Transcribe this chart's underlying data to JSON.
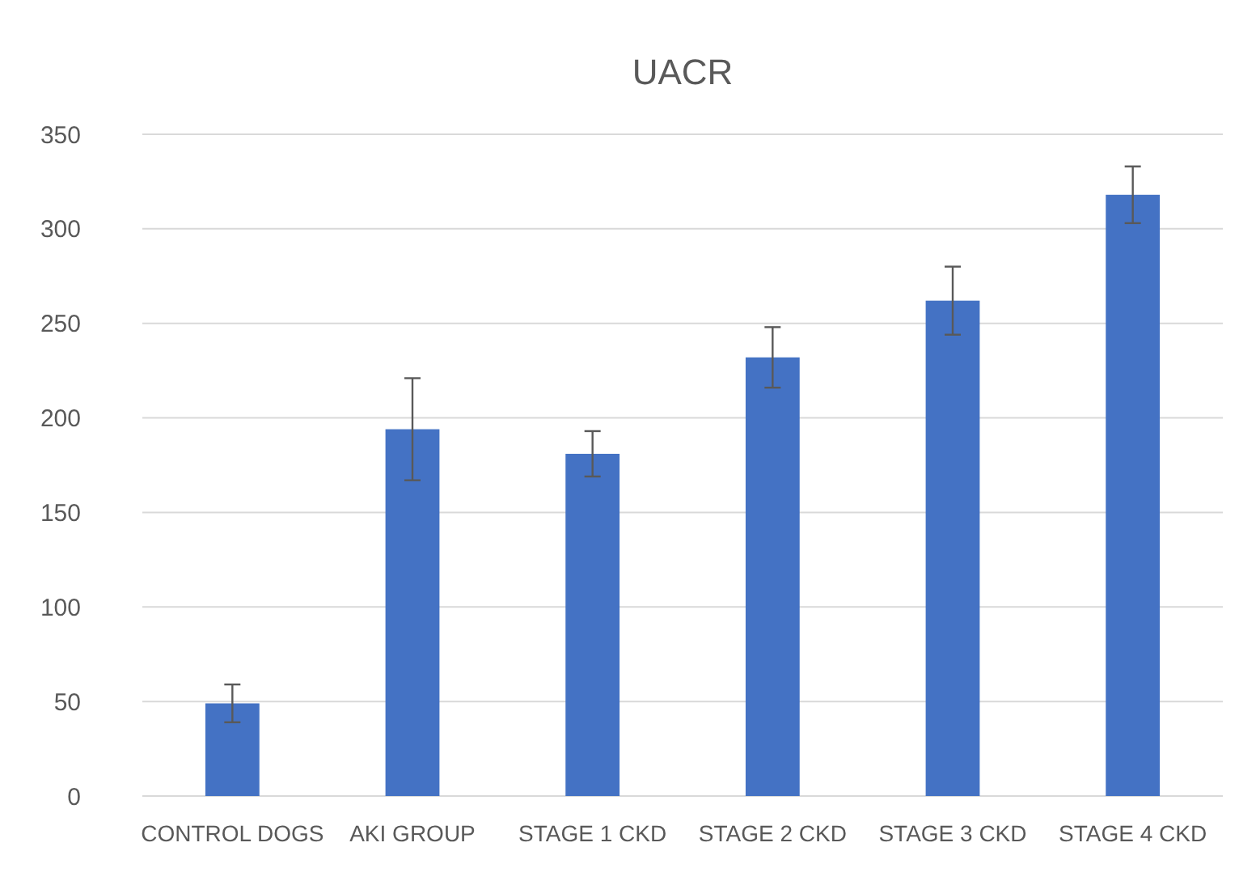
{
  "chart_data": {
    "type": "bar",
    "title": "UACR",
    "categories": [
      "CONTROL DOGS",
      "AKI GROUP",
      "STAGE 1 CKD",
      "STAGE 2 CKD",
      "STAGE 3 CKD",
      "STAGE 4 CKD"
    ],
    "values": [
      49,
      194,
      181,
      232,
      262,
      318
    ],
    "errors": [
      10,
      27,
      12,
      16,
      18,
      15
    ],
    "color": "#4472c4",
    "ylim": [
      0,
      350
    ],
    "yticks": [
      0,
      50,
      100,
      150,
      200,
      250,
      300,
      350
    ],
    "grid": "y"
  }
}
